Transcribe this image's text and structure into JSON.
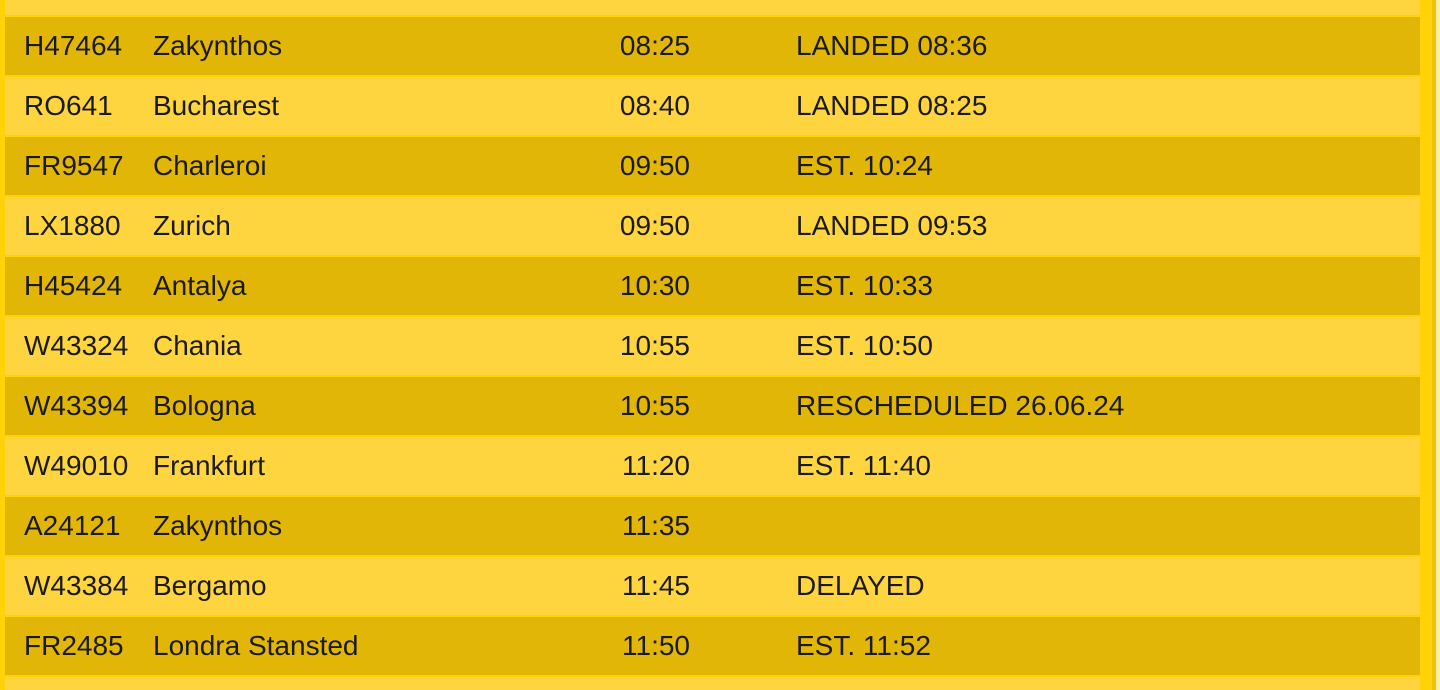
{
  "theme": {
    "page_background": "#ffd20a",
    "row_dark": "#e1b607",
    "row_light": "#fed53f",
    "text_color": "#1a1a1a",
    "edge_line_color": "#eec10c",
    "edge_pale_color": "#ffefa0"
  },
  "board": {
    "kind": "flight-arrivals-table",
    "columns": [
      "flight",
      "destination",
      "time",
      "status"
    ],
    "rows": [
      {
        "flight": "H47464",
        "destination": "Zakynthos",
        "time": "08:25",
        "status": "LANDED 08:36"
      },
      {
        "flight": "RO641",
        "destination": "Bucharest",
        "time": "08:40",
        "status": "LANDED 08:25"
      },
      {
        "flight": "FR9547",
        "destination": "Charleroi",
        "time": "09:50",
        "status": "EST. 10:24"
      },
      {
        "flight": "LX1880",
        "destination": "Zurich",
        "time": "09:50",
        "status": "LANDED 09:53"
      },
      {
        "flight": "H45424",
        "destination": "Antalya",
        "time": "10:30",
        "status": "EST. 10:33"
      },
      {
        "flight": "W43324",
        "destination": "Chania",
        "time": "10:55",
        "status": "EST. 10:50"
      },
      {
        "flight": "W43394",
        "destination": "Bologna",
        "time": "10:55",
        "status": "RESCHEDULED 26.06.24"
      },
      {
        "flight": "W49010",
        "destination": "Frankfurt",
        "time": "11:20",
        "status": "EST. 11:40"
      },
      {
        "flight": "A24121",
        "destination": "Zakynthos",
        "time": "11:35",
        "status": ""
      },
      {
        "flight": "W43384",
        "destination": "Bergamo",
        "time": "11:45",
        "status": "DELAYED"
      },
      {
        "flight": "FR2485",
        "destination": "Londra Stansted",
        "time": "11:50",
        "status": "EST. 11:52"
      }
    ]
  }
}
